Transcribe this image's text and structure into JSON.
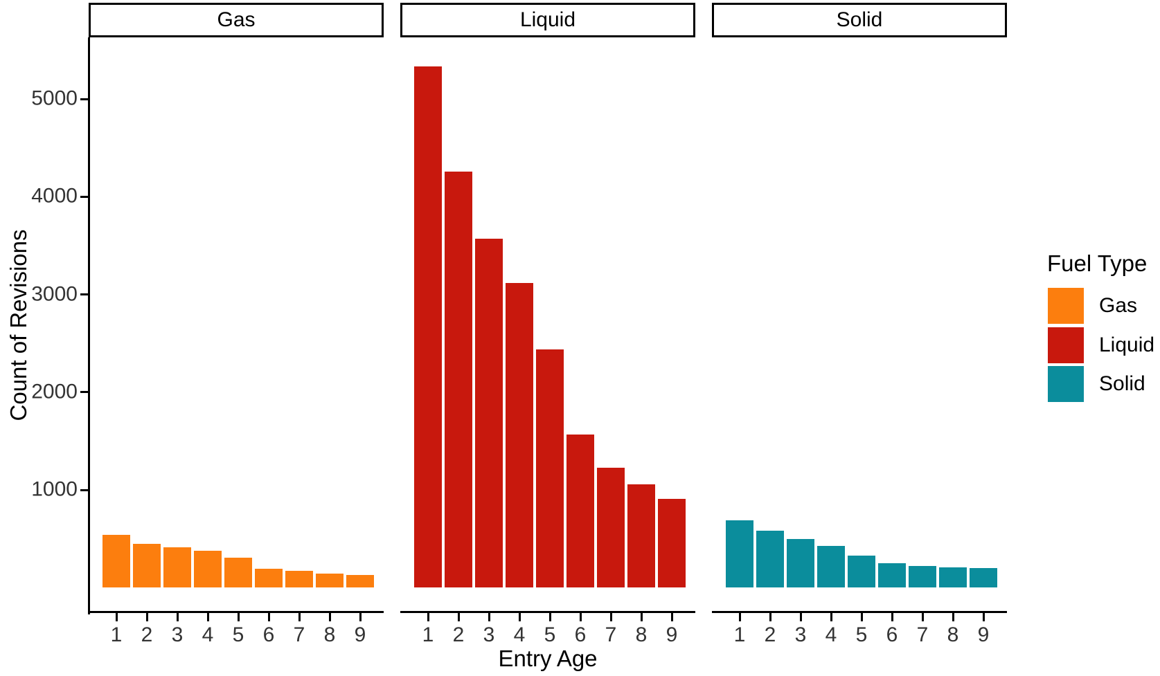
{
  "chart_data": {
    "type": "bar",
    "title": "",
    "xlabel": "Entry Age",
    "ylabel": "Count of Revisions",
    "categories": [
      "1",
      "2",
      "3",
      "4",
      "5",
      "6",
      "7",
      "8",
      "9"
    ],
    "facets": [
      "Gas",
      "Liquid",
      "Solid"
    ],
    "series": [
      {
        "name": "Gas",
        "color": "#FC7E0E",
        "values": [
          540,
          450,
          415,
          380,
          310,
          190,
          170,
          145,
          130
        ]
      },
      {
        "name": "Liquid",
        "color": "#C8180D",
        "values": [
          5330,
          4260,
          3570,
          3120,
          2440,
          1570,
          1230,
          1060,
          910
        ]
      },
      {
        "name": "Solid",
        "color": "#0B8D9C",
        "values": [
          690,
          580,
          495,
          430,
          330,
          250,
          220,
          205,
          200
        ]
      }
    ],
    "yticks": [
      1000,
      2000,
      3000,
      4000,
      5000
    ],
    "ylim": [
      0,
      5600
    ],
    "grid": false,
    "legend": {
      "title": "Fuel Type",
      "position": "right",
      "entries": [
        "Gas",
        "Liquid",
        "Solid"
      ]
    }
  },
  "colors": {
    "background": "#FFFFFF",
    "axis_line": "#000000",
    "axis_text": "#333333",
    "strip_border": "#000000",
    "strip_background": "#FFFFFF"
  }
}
